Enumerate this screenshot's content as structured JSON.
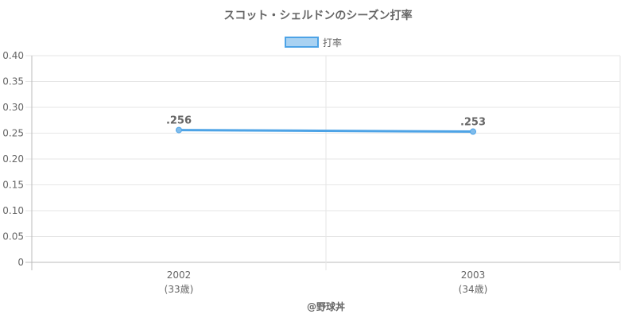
{
  "chart_data": {
    "type": "line",
    "title": "スコット・シェルドンのシーズン打率",
    "categories": [
      "2002",
      "2003"
    ],
    "category_sublabels": [
      "(33歳)",
      "(34歳)"
    ],
    "series": [
      {
        "name": "打率",
        "values": [
          0.256,
          0.253
        ],
        "labels": [
          ".256",
          ".253"
        ],
        "color": "#4da3e6"
      }
    ],
    "ylim": [
      0,
      0.4
    ],
    "y_ticks": [
      "0",
      "0.05",
      "0.10",
      "0.15",
      "0.20",
      "0.25",
      "0.30",
      "0.35",
      "0.40"
    ],
    "grid": true,
    "legend_position": "top-center"
  },
  "credit": "@野球丼"
}
